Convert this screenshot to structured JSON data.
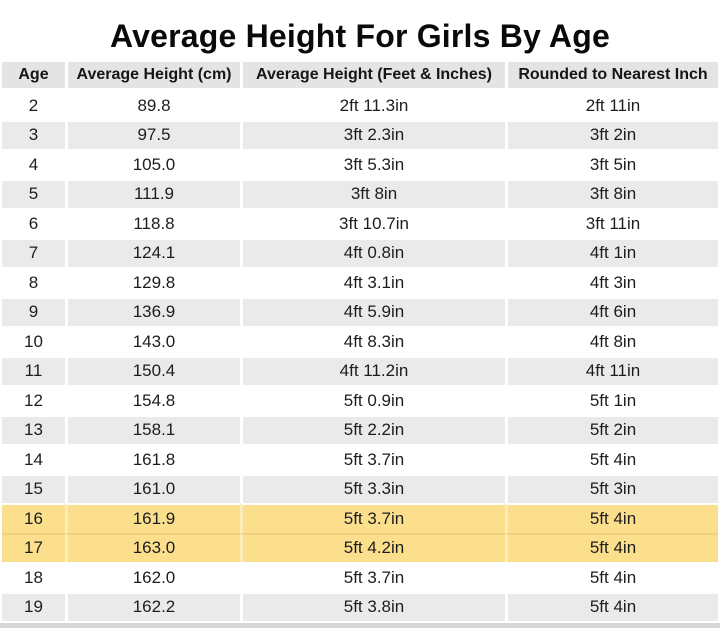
{
  "chart_data": {
    "type": "table",
    "title": "Average Height For Girls By Age",
    "columns": [
      "Age",
      "Average Height (cm)",
      "Average Height (Feet & Inches)",
      "Rounded to Nearest Inch"
    ],
    "rows": [
      [
        "2",
        "89.8",
        "2ft 11.3in",
        "2ft 11in"
      ],
      [
        "3",
        "97.5",
        "3ft 2.3in",
        "3ft 2in"
      ],
      [
        "4",
        "105.0",
        "3ft 5.3in",
        "3ft 5in"
      ],
      [
        "5",
        "111.9",
        "3ft 8in",
        "3ft 8in"
      ],
      [
        "6",
        "118.8",
        "3ft 10.7in",
        "3ft 11in"
      ],
      [
        "7",
        "124.1",
        "4ft 0.8in",
        "4ft 1in"
      ],
      [
        "8",
        "129.8",
        "4ft 3.1in",
        "4ft 3in"
      ],
      [
        "9",
        "136.9",
        "4ft 5.9in",
        "4ft 6in"
      ],
      [
        "10",
        "143.0",
        "4ft 8.3in",
        "4ft 8in"
      ],
      [
        "11",
        "150.4",
        "4ft 11.2in",
        "4ft 11in"
      ],
      [
        "12",
        "154.8",
        "5ft 0.9in",
        "5ft 1in"
      ],
      [
        "13",
        "158.1",
        "5ft 2.2in",
        "5ft 2in"
      ],
      [
        "14",
        "161.8",
        "5ft 3.7in",
        "5ft 4in"
      ],
      [
        "15",
        "161.0",
        "5ft 3.3in",
        "5ft 3in"
      ],
      [
        "16",
        "161.9",
        "5ft 3.7in",
        "5ft 4in"
      ],
      [
        "17",
        "163.0",
        "5ft 4.2in",
        "5ft 4in"
      ],
      [
        "18",
        "162.0",
        "5ft 3.7in",
        "5ft 4in"
      ],
      [
        "19",
        "162.2",
        "5ft 3.8in",
        "5ft 4in"
      ]
    ],
    "highlighted_ages": [
      "16",
      "17"
    ],
    "layout": {
      "zebra_striping": true,
      "legend": "none",
      "grid": false
    }
  },
  "colors": {
    "header_bg": "#e4e4e4",
    "zebra_row_bg": "#eaeaea",
    "row_bg": "#ffffff",
    "highlight_bg": "#fbdf8d",
    "bottom_strip": "#d6d6d6",
    "title_text": "#0a0a0a",
    "cell_text": "#1d1d1d"
  }
}
